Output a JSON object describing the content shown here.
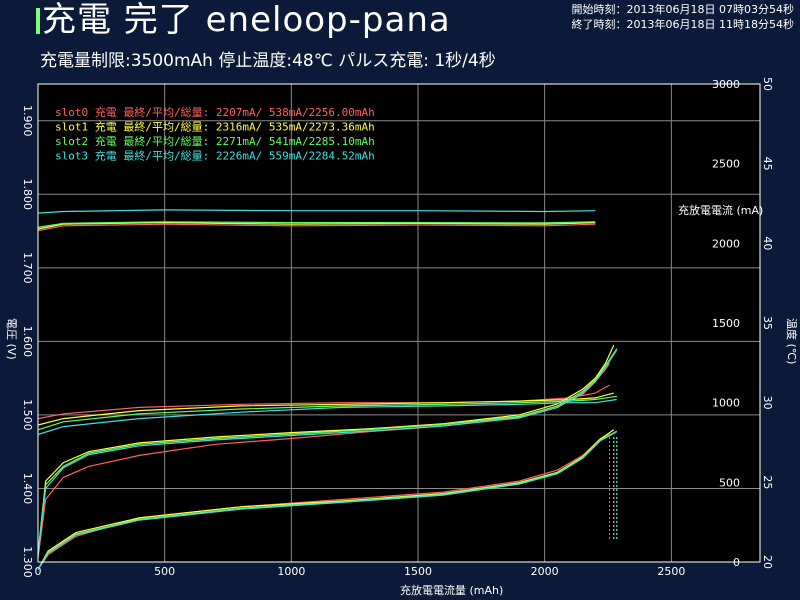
{
  "header": {
    "title": "充電 完了 eneloop-pana",
    "start_time": "開始時刻：2013年06月18日 07時03分54秒",
    "end_time": "終了時刻：2013年06月18日 11時18分54秒",
    "subtitle": "充電量制限:3500mAh 停止温度:48℃ パルス充電: 1秒/4秒"
  },
  "colors": {
    "background": "#0b1a38",
    "plot_bg": "#000000",
    "slot0": "#ff6060",
    "slot1": "#ffff40",
    "slot2": "#60ff60",
    "slot3": "#40e0e0"
  },
  "chart_data": {
    "type": "line",
    "title": "充電 完了 eneloop-pana",
    "xlabel": "充放電電流量 (mAh)",
    "ylabel": "電圧 (V)",
    "ylabel_right_current": "充放電電流 (mA)",
    "ylabel_right_temp": "温度 (℃)",
    "xlim": [
      0,
      2850
    ],
    "ylim": [
      1.3,
      1.95
    ],
    "ylim_current": [
      0,
      3000
    ],
    "ylim_temp": [
      20,
      50
    ],
    "x_ticks": [
      "0",
      "500",
      "1000",
      "1500",
      "2000",
      "2500"
    ],
    "y_ticks": [
      "1.300",
      "1.400",
      "1.500",
      "1.600",
      "1.700",
      "1.800",
      "1.900"
    ],
    "current_ticks": [
      "0",
      "500",
      "1000",
      "1500",
      "2000",
      "2500",
      "3000"
    ],
    "temp_ticks": [
      "20",
      "25",
      "30",
      "35",
      "40",
      "45",
      "50"
    ],
    "grid": true,
    "legend": [
      "slot0  充電  最終/平均/総量: 2207mA/  538mA/2256.00mAh",
      "slot1  充電  最終/平均/総量: 2316mA/  535mA/2273.36mAh",
      "slot2  充電  最終/平均/総量: 2271mA/  541mA/2285.10mAh",
      "slot3  充電  最終/平均/総量: 2226mA/  559mA/2284.52mAh"
    ],
    "legend_position": "top-left",
    "series": [
      {
        "name": "slot0",
        "color": "#ff6060",
        "voltage": {
          "x": [
            0,
            30,
            100,
            200,
            400,
            700,
            1000,
            1300,
            1600,
            1900,
            2050,
            2150,
            2200,
            2240,
            2256
          ],
          "y": [
            1.305,
            1.385,
            1.415,
            1.43,
            1.445,
            1.46,
            1.468,
            1.477,
            1.485,
            1.497,
            1.512,
            1.528,
            1.545,
            1.562,
            1.57
          ]
        },
        "voltage_low": {
          "x": [
            0,
            40,
            150,
            400,
            800,
            1200,
            1600,
            1900,
            2050,
            2150,
            2220,
            2256
          ],
          "y": [
            1.29,
            1.31,
            1.335,
            1.36,
            1.375,
            1.385,
            1.395,
            1.41,
            1.425,
            1.445,
            1.468,
            1.475
          ]
        },
        "current": {
          "x": [
            0,
            100,
            500,
            1000,
            1500,
            2000,
            2200
          ],
          "y": [
            2080,
            2110,
            2120,
            2110,
            2115,
            2110,
            2120
          ]
        },
        "temp": {
          "x": [
            0,
            100,
            400,
            800,
            1200,
            1600,
            1900,
            2100,
            2200,
            2256
          ],
          "y": [
            29.0,
            29.3,
            29.7,
            29.9,
            30.0,
            30.0,
            30.1,
            30.3,
            30.6,
            31.1
          ]
        }
      },
      {
        "name": "slot1",
        "color": "#ffff40",
        "voltage": {
          "x": [
            0,
            30,
            100,
            200,
            400,
            700,
            1000,
            1300,
            1600,
            1900,
            2050,
            2150,
            2200,
            2240,
            2273
          ],
          "y": [
            1.31,
            1.41,
            1.435,
            1.45,
            1.462,
            1.47,
            1.476,
            1.481,
            1.488,
            1.5,
            1.515,
            1.535,
            1.55,
            1.57,
            1.595
          ]
        },
        "voltage_low": {
          "x": [
            0,
            40,
            150,
            400,
            800,
            1200,
            1600,
            1900,
            2050,
            2150,
            2220,
            2273
          ],
          "y": [
            1.29,
            1.315,
            1.34,
            1.36,
            1.375,
            1.383,
            1.393,
            1.408,
            1.422,
            1.443,
            1.467,
            1.48
          ]
        },
        "current": {
          "x": [
            0,
            100,
            500,
            1000,
            1500,
            2000,
            2200
          ],
          "y": [
            2090,
            2120,
            2130,
            2120,
            2125,
            2120,
            2130
          ]
        },
        "temp": {
          "x": [
            0,
            100,
            400,
            800,
            1200,
            1600,
            1900,
            2100,
            2200,
            2273
          ],
          "y": [
            28.6,
            29.0,
            29.5,
            29.8,
            29.9,
            30.0,
            30.1,
            30.2,
            30.3,
            30.6
          ]
        }
      },
      {
        "name": "slot2",
        "color": "#60ff60",
        "voltage": {
          "x": [
            0,
            30,
            100,
            200,
            400,
            700,
            1000,
            1300,
            1600,
            1900,
            2050,
            2150,
            2200,
            2240,
            2285
          ],
          "y": [
            1.312,
            1.405,
            1.43,
            1.448,
            1.46,
            1.468,
            1.474,
            1.48,
            1.487,
            1.498,
            1.512,
            1.532,
            1.548,
            1.567,
            1.59
          ]
        },
        "voltage_low": {
          "x": [
            0,
            40,
            150,
            400,
            800,
            1200,
            1600,
            1900,
            2050,
            2150,
            2220,
            2285
          ],
          "y": [
            1.29,
            1.313,
            1.338,
            1.358,
            1.373,
            1.382,
            1.392,
            1.407,
            1.421,
            1.442,
            1.466,
            1.478
          ]
        },
        "current": {
          "x": [
            0,
            100,
            500,
            1000,
            1500,
            2000,
            2200
          ],
          "y": [
            2100,
            2125,
            2135,
            2130,
            2130,
            2128,
            2135
          ]
        },
        "temp": {
          "x": [
            0,
            100,
            400,
            800,
            1200,
            1600,
            1900,
            2100,
            2200,
            2285
          ],
          "y": [
            28.3,
            28.8,
            29.3,
            29.6,
            29.8,
            29.9,
            30.0,
            30.1,
            30.2,
            30.4
          ]
        }
      },
      {
        "name": "slot3",
        "color": "#40e0e0",
        "voltage": {
          "x": [
            0,
            30,
            100,
            200,
            400,
            700,
            1000,
            1300,
            1600,
            1900,
            2050,
            2150,
            2200,
            2240,
            2284
          ],
          "y": [
            1.31,
            1.4,
            1.428,
            1.446,
            1.458,
            1.466,
            1.472,
            1.478,
            1.485,
            1.496,
            1.51,
            1.53,
            1.546,
            1.565,
            1.588
          ]
        },
        "voltage_low": {
          "x": [
            0,
            40,
            150,
            400,
            800,
            1200,
            1600,
            1900,
            2050,
            2150,
            2220,
            2284
          ],
          "y": [
            1.29,
            1.312,
            1.337,
            1.357,
            1.372,
            1.381,
            1.391,
            1.406,
            1.42,
            1.441,
            1.465,
            1.477
          ]
        },
        "current": {
          "x": [
            0,
            100,
            500,
            1000,
            1500,
            2000,
            2200
          ],
          "y": [
            2190,
            2200,
            2210,
            2205,
            2205,
            2200,
            2205
          ]
        },
        "temp": {
          "x": [
            0,
            100,
            400,
            800,
            1200,
            1600,
            1900,
            2100,
            2200,
            2284
          ],
          "y": [
            28.0,
            28.5,
            29.0,
            29.4,
            29.7,
            29.8,
            29.9,
            30.0,
            30.0,
            30.2
          ]
        }
      }
    ]
  }
}
